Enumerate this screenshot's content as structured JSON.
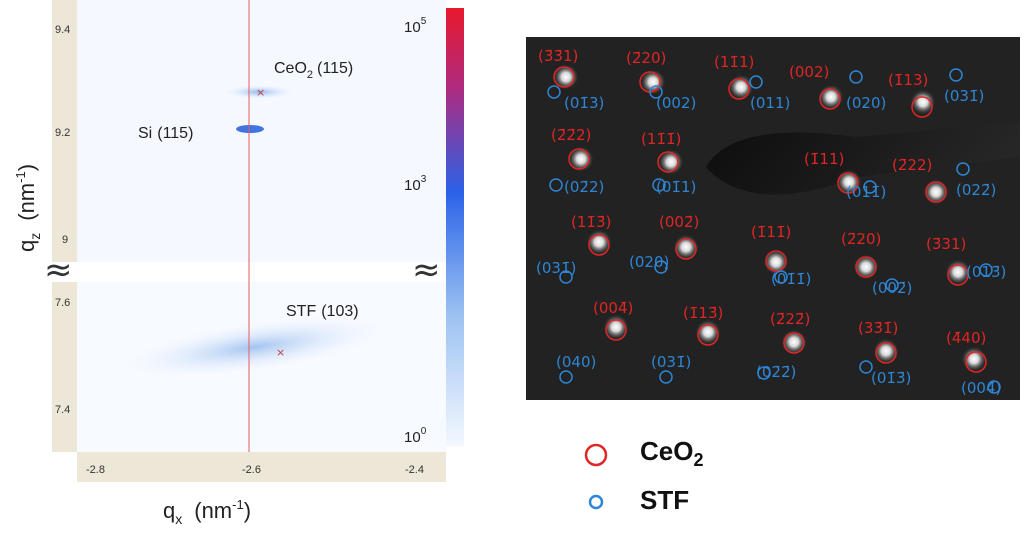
{
  "rsm": {
    "qx_axis": {
      "title_main": "q",
      "title_sub": "x",
      "title_unit": "(nm",
      "title_exp": "-1",
      "title_close": ")",
      "ticks": [
        "-2.8",
        "-2.6",
        "-2.4"
      ]
    },
    "qz_axis": {
      "title_main": "q",
      "title_sub": "z",
      "title_unit": "(nm",
      "title_exp": "-1",
      "title_close": ")",
      "ticks_top": [
        "9.4",
        "9.2",
        "9"
      ],
      "ticks_bottom": [
        "7.6",
        "7.4"
      ],
      "break_symbol": "≈"
    },
    "colorbar": {
      "labels": [
        {
          "base": "10",
          "exp": "5"
        },
        {
          "base": "10",
          "exp": "3"
        },
        {
          "base": "10",
          "exp": "0"
        }
      ],
      "colors": [
        "#e8192c",
        "#2a62e8",
        "#eef5ff"
      ]
    },
    "peaks": {
      "ceo2": {
        "name": "CeO",
        "sub": "2",
        "hkl": "(115)"
      },
      "si": {
        "name": "Si",
        "hkl": "(115)"
      },
      "stf": {
        "name": "STF",
        "hkl": "(103)"
      }
    }
  },
  "saed": {
    "red_labels": [
      "(3̄3̄1)",
      "(2̄20)",
      "(11̄1)",
      "(002)",
      "(1̄13)",
      "(2̄2̄2)",
      "(11̄1̄)",
      "(1̄11)",
      "(2̄22)",
      "(11̄3̄)",
      "(002̄)",
      "(1̄11̄)",
      "(2̄20)",
      "(3̄31)",
      "(004̄)",
      "(1̄13̄)",
      "(2̄22̄)",
      "(33̄1̄)",
      "(4̄40)"
    ],
    "blue_labels": [
      "(01̄3)",
      "(002)",
      "(011)",
      "(020)",
      "(031̄)",
      "(02̄2)",
      "(01̄1)",
      "(011̄)",
      "(022̄)",
      "(031̄)",
      "(020)",
      "(01̄1̄)",
      "(002̄)",
      "(013̄)",
      "(040)",
      "(031̄)",
      "(02̄2̄)",
      "(01̄3̄)",
      "(004̄)"
    ]
  },
  "legend": {
    "ceo2": {
      "name": "CeO",
      "sub": "2",
      "color": "#e02525"
    },
    "stf": {
      "name": "STF",
      "color": "#2e86d6"
    }
  }
}
